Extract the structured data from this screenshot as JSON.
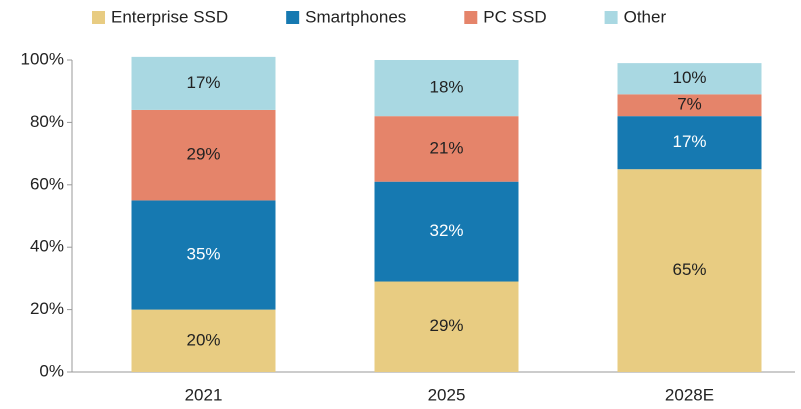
{
  "chart_data": {
    "type": "stacked_bar",
    "categories": [
      "2021",
      "2025",
      "2028E"
    ],
    "series": [
      {
        "name": "Enterprise SSD",
        "color": "#e8cc82",
        "values": [
          20,
          29,
          65
        ],
        "value_labels": [
          "20%",
          "29%",
          "65%"
        ]
      },
      {
        "name": "Smartphones",
        "color": "#1679b1",
        "values": [
          35,
          32,
          17
        ],
        "value_labels": [
          "35%",
          "32%",
          "17%"
        ]
      },
      {
        "name": "PC SSD",
        "color": "#e5846a",
        "values": [
          29,
          21,
          7
        ],
        "value_labels": [
          "29%",
          "21%",
          "7%"
        ]
      },
      {
        "name": "Other",
        "color": "#a9d8e2",
        "values": [
          17,
          18,
          10
        ],
        "value_labels": [
          "17%",
          "18%",
          "10%"
        ]
      }
    ],
    "ylim": [
      0,
      100
    ],
    "yticks": [
      {
        "value": 0,
        "label": "0%"
      },
      {
        "value": 20,
        "label": "20%"
      },
      {
        "value": 40,
        "label": "40%"
      },
      {
        "value": 60,
        "label": "60%"
      },
      {
        "value": 80,
        "label": "80%"
      },
      {
        "value": 100,
        "label": "100%"
      }
    ],
    "grid": false,
    "legend": "top"
  }
}
